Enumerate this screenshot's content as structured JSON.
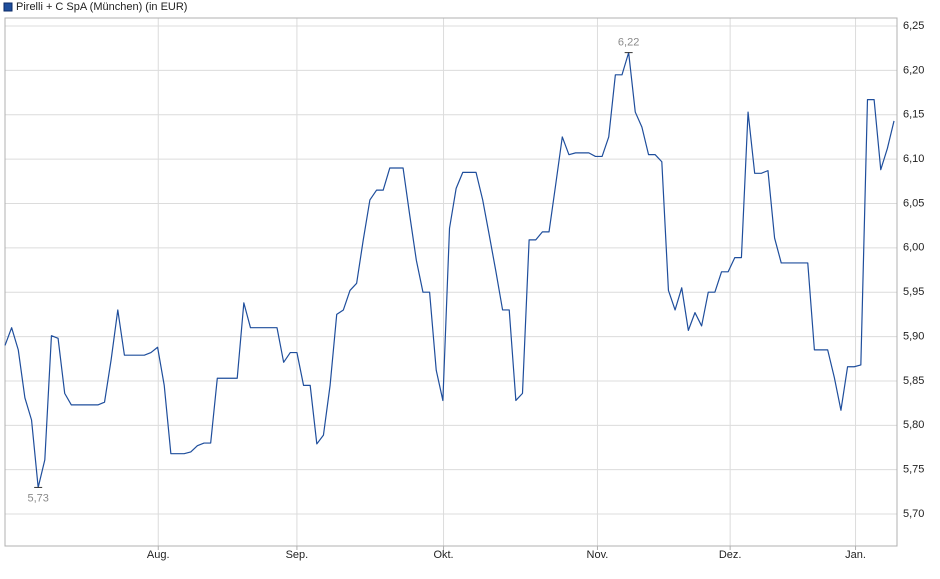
{
  "chart_data": {
    "type": "line",
    "legend": "Pirelli + C SpA (München) (in EUR)",
    "color": "#1f4e9c",
    "values": [
      5.89,
      5.91,
      5.885,
      5.831,
      5.806,
      5.73,
      5.761,
      5.901,
      5.898,
      5.836,
      5.823,
      5.823,
      5.823,
      5.823,
      5.823,
      5.826,
      5.874,
      5.93,
      5.879,
      5.879,
      5.879,
      5.879,
      5.882,
      5.888,
      5.845,
      5.768,
      5.768,
      5.768,
      5.77,
      5.777,
      5.78,
      5.78,
      5.853,
      5.853,
      5.853,
      5.853,
      5.938,
      5.91,
      5.91,
      5.91,
      5.91,
      5.91,
      5.871,
      5.882,
      5.882,
      5.845,
      5.845,
      5.779,
      5.789,
      5.845,
      5.925,
      5.93,
      5.952,
      5.96,
      6.009,
      6.054,
      6.065,
      6.065,
      6.09,
      6.09,
      6.09,
      6.037,
      5.986,
      5.95,
      5.95,
      5.862,
      5.828,
      6.022,
      6.067,
      6.085,
      6.085,
      6.085,
      6.054,
      6.014,
      5.973,
      5.93,
      5.93,
      5.828,
      5.836,
      6.009,
      6.009,
      6.018,
      6.018,
      6.071,
      6.125,
      6.105,
      6.107,
      6.107,
      6.107,
      6.103,
      6.103,
      6.125,
      6.195,
      6.195,
      6.22,
      6.153,
      6.136,
      6.105,
      6.105,
      6.097,
      5.952,
      5.93,
      5.955,
      5.907,
      5.927,
      5.912,
      5.95,
      5.95,
      5.973,
      5.973,
      5.989,
      5.989,
      6.153,
      6.084,
      6.084,
      6.087,
      6.011,
      5.983,
      5.983,
      5.983,
      5.983,
      5.983,
      5.885,
      5.885,
      5.885,
      5.854,
      5.817,
      5.866,
      5.866,
      5.868,
      6.167,
      6.167,
      6.088,
      6.112,
      6.143
    ],
    "xlim": [
      0,
      134.45
    ],
    "xticks": [
      {
        "value": 23.1,
        "label": "Aug."
      },
      {
        "value": 44.0,
        "label": "Sep."
      },
      {
        "value": 66.1,
        "label": "Okt."
      },
      {
        "value": 89.3,
        "label": "Nov."
      },
      {
        "value": 109.3,
        "label": "Dez."
      },
      {
        "value": 128.2,
        "label": "Jan."
      }
    ],
    "ylim": [
      5.664,
      6.259
    ],
    "yticks": [
      {
        "value": 5.7,
        "label": "5,70"
      },
      {
        "value": 5.75,
        "label": "5,75"
      },
      {
        "value": 5.8,
        "label": "5,80"
      },
      {
        "value": 5.85,
        "label": "5,85"
      },
      {
        "value": 5.9,
        "label": "5,90"
      },
      {
        "value": 5.95,
        "label": "5,95"
      },
      {
        "value": 6.0,
        "label": "6,00"
      },
      {
        "value": 6.05,
        "label": "6,05"
      },
      {
        "value": 6.1,
        "label": "6,10"
      },
      {
        "value": 6.15,
        "label": "6,15"
      },
      {
        "value": 6.2,
        "label": "6,20"
      },
      {
        "value": 6.25,
        "label": "6,25"
      }
    ],
    "grid": true,
    "annotations": [
      {
        "index": 94,
        "value": 6.22,
        "label": "6,22",
        "position": "above"
      },
      {
        "index": 5,
        "value": 5.73,
        "label": "5,73",
        "position": "below"
      }
    ]
  }
}
